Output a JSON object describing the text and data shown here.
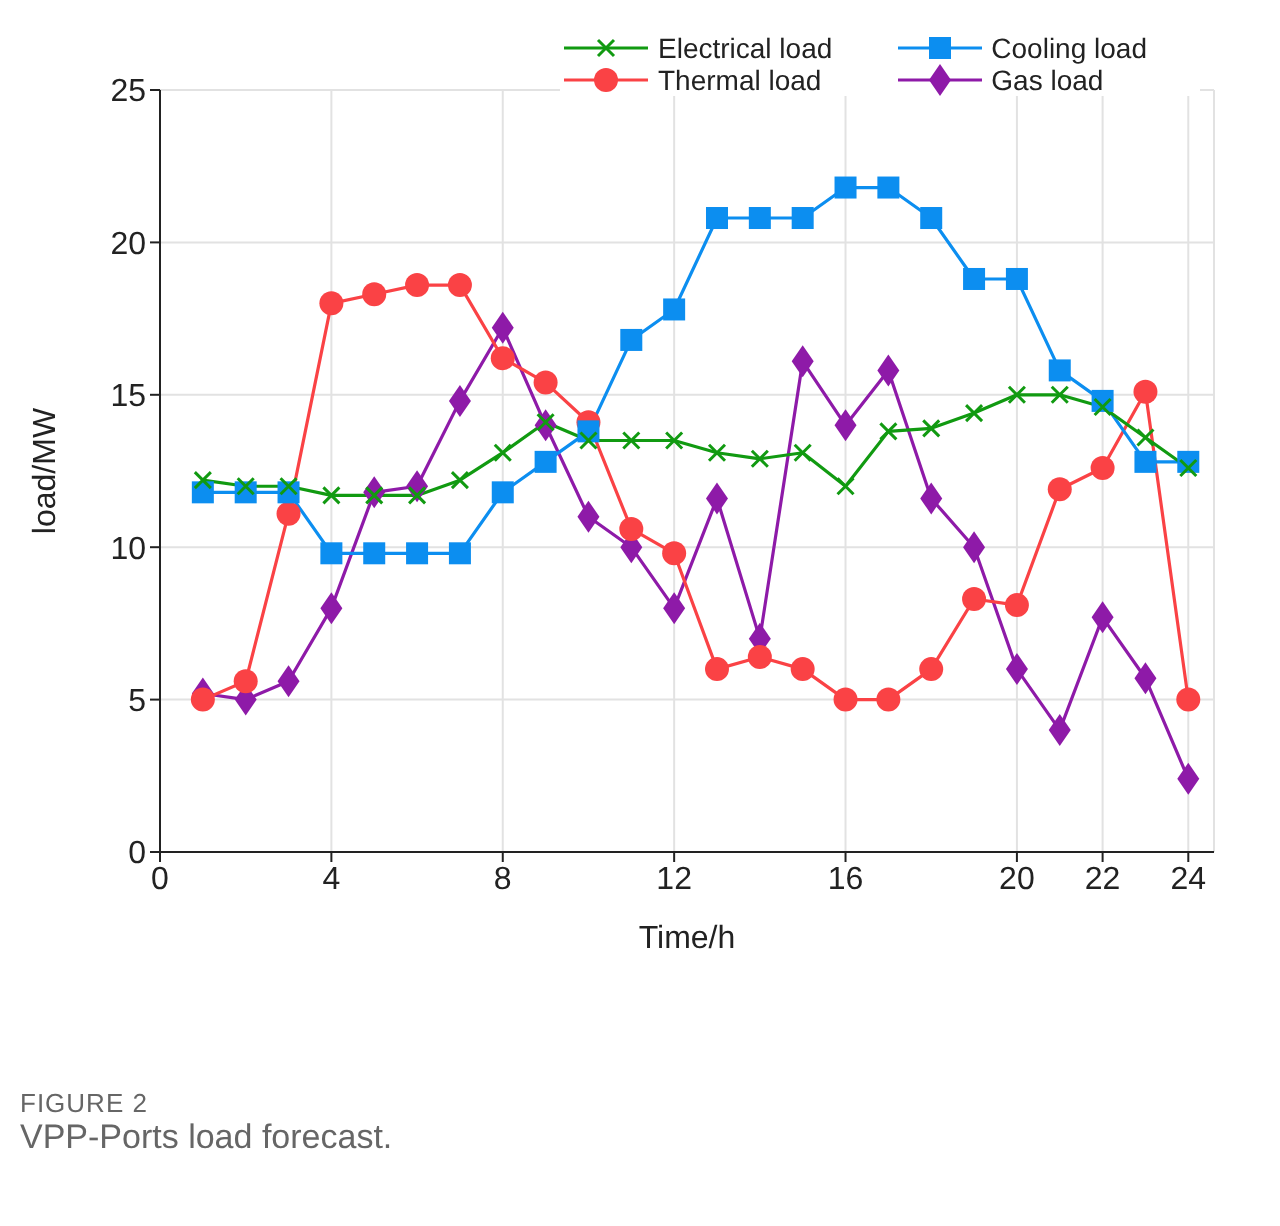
{
  "chart_data": {
    "type": "line",
    "xlabel": "Time/h",
    "ylabel": "load/MW",
    "annotations": [
      "FIGURE 2",
      "VPP-Ports load forecast."
    ],
    "x": [
      1,
      2,
      3,
      4,
      5,
      6,
      7,
      8,
      9,
      10,
      11,
      12,
      13,
      14,
      15,
      16,
      17,
      18,
      19,
      20,
      21,
      22,
      23,
      24
    ],
    "xlim": [
      0,
      24.6
    ],
    "xticks": [
      0,
      4,
      8,
      12,
      16,
      20,
      22,
      24
    ],
    "ylim": [
      0,
      25
    ],
    "yticks": [
      0,
      5,
      10,
      15,
      20,
      25
    ],
    "grid": true,
    "legend": "top right",
    "line_style": "solid",
    "series": [
      {
        "name": "Electrical load",
        "color": "#119a11",
        "marker": "cross",
        "values": [
          12.2,
          12.0,
          12.0,
          11.7,
          11.7,
          11.7,
          12.2,
          13.1,
          14.1,
          13.5,
          13.5,
          13.5,
          13.1,
          12.9,
          13.1,
          12.0,
          13.8,
          13.9,
          14.4,
          15.0,
          15.0,
          14.6,
          13.6,
          12.6
        ]
      },
      {
        "name": "Cooling load",
        "color": "#0c8ef0",
        "marker": "square",
        "values": [
          11.8,
          11.8,
          11.8,
          9.8,
          9.8,
          9.8,
          9.8,
          11.8,
          12.8,
          13.8,
          16.8,
          17.8,
          20.8,
          20.8,
          20.8,
          21.8,
          21.8,
          20.8,
          18.8,
          18.8,
          15.8,
          14.8,
          12.8,
          12.8
        ]
      },
      {
        "name": "Thermal load",
        "color": "#fa4245",
        "marker": "circle",
        "values": [
          5.0,
          5.6,
          11.1,
          18.0,
          18.3,
          18.6,
          18.6,
          16.2,
          15.4,
          14.1,
          10.6,
          9.8,
          6.0,
          6.4,
          6.0,
          5.0,
          5.0,
          6.0,
          8.3,
          8.1,
          11.9,
          12.6,
          15.1,
          5.0
        ]
      },
      {
        "name": "Gas load",
        "color": "#8e1aa8",
        "marker": "diamond",
        "values": [
          5.2,
          5.0,
          5.6,
          8.0,
          11.8,
          12.0,
          14.8,
          17.2,
          14.0,
          11.0,
          10.0,
          8.0,
          11.6,
          7.0,
          16.1,
          14.0,
          15.8,
          11.6,
          10.0,
          6.0,
          4.0,
          7.7,
          5.7,
          2.4
        ]
      }
    ]
  }
}
